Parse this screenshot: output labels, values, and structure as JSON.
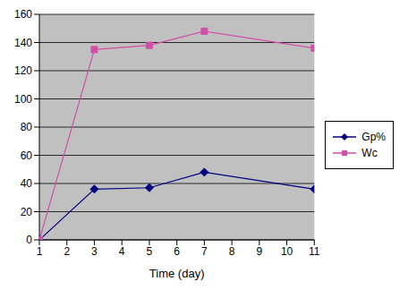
{
  "chart_data": {
    "type": "line",
    "x_label": "Time (day)",
    "x": [
      1,
      3,
      5,
      7,
      11
    ],
    "series": [
      {
        "name": "Gp%",
        "color": "#000080",
        "marker": "diamond",
        "values": [
          0,
          36,
          37,
          48,
          36
        ]
      },
      {
        "name": "Wc",
        "color": "#d14fa8",
        "marker": "square",
        "values": [
          0,
          135,
          138,
          148,
          136
        ]
      }
    ],
    "xlim": [
      1,
      11
    ],
    "xticks": [
      1,
      2,
      3,
      4,
      5,
      6,
      7,
      8,
      9,
      10,
      11
    ],
    "ylim": [
      0,
      160
    ],
    "yticks": [
      0,
      20,
      40,
      60,
      80,
      100,
      120,
      140,
      160
    ],
    "grid": true,
    "legend": "right"
  }
}
